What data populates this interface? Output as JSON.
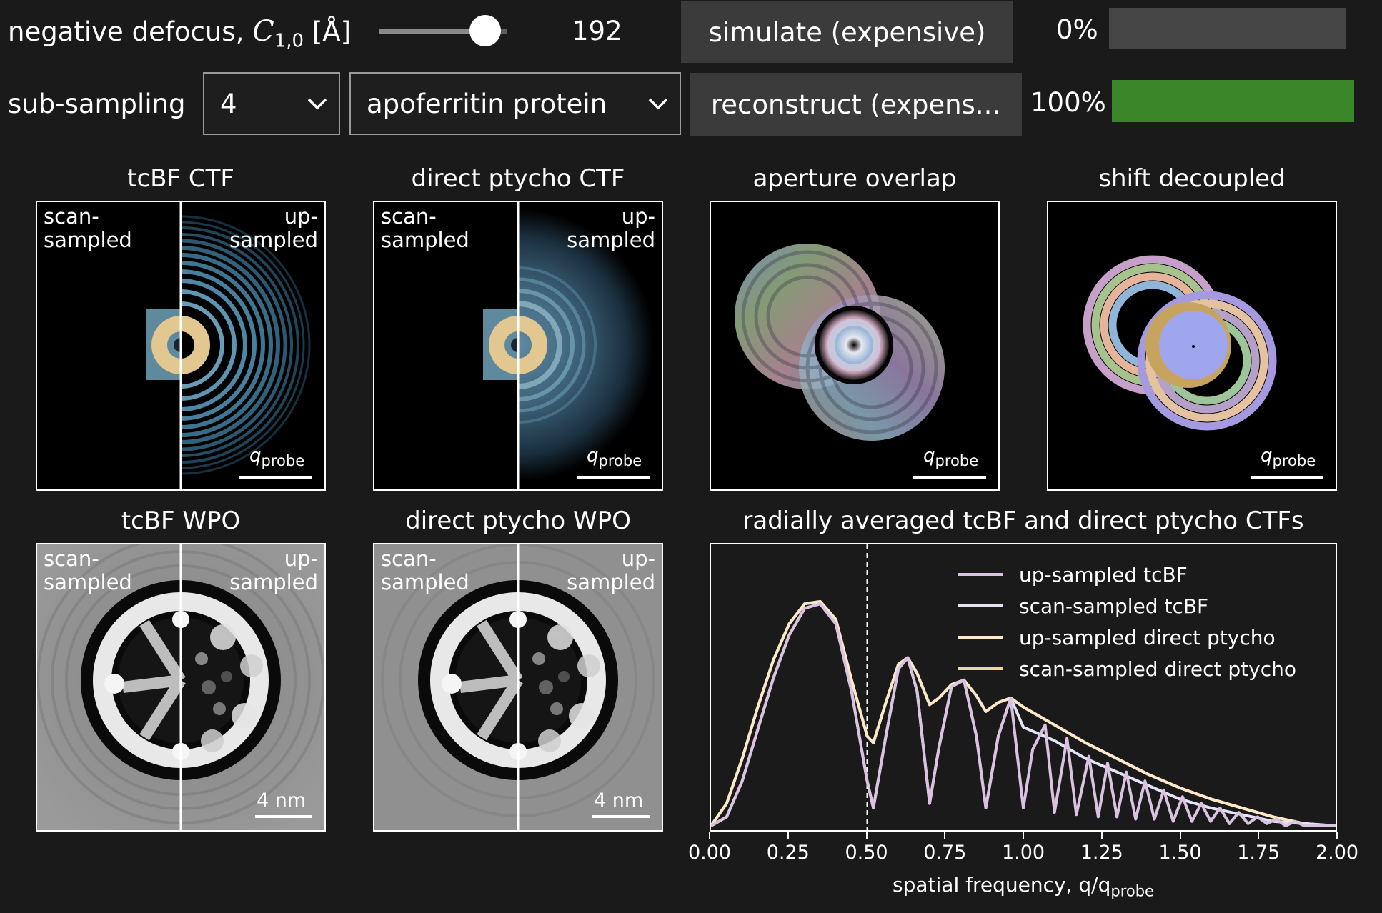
{
  "controls": {
    "defocus_label": "negative defocus, ",
    "defocus_symbol": "C",
    "defocus_sub": "1,0",
    "defocus_unit": " [Å]",
    "defocus_value": "192",
    "slider_fraction": 0.83,
    "simulate_label": "simulate (expensive)",
    "simulate_progress_label": "0%",
    "simulate_progress": 0,
    "subsampling_label": "sub-sampling",
    "subsampling_value": "4",
    "sample_value": "apoferritin protein",
    "reconstruct_label": "reconstruct (expens...",
    "reconstruct_progress_label": "100%",
    "reconstruct_progress": 1.0,
    "progress_color": "#3a8628"
  },
  "panels": {
    "tcbf_ctf": {
      "title": "tcBF CTF",
      "left": "scan-\nsampled",
      "right": "up-\nsampled",
      "scale": "q",
      "scale_sub": "probe"
    },
    "ptycho_ctf": {
      "title": "direct ptycho CTF",
      "left": "scan-\nsampled",
      "right": "up-\nsampled",
      "scale": "q",
      "scale_sub": "probe"
    },
    "aperture": {
      "title": "aperture overlap",
      "scale": "q",
      "scale_sub": "probe"
    },
    "shift": {
      "title": "shift decoupled",
      "scale": "q",
      "scale_sub": "probe"
    },
    "tcbf_wpo": {
      "title": "tcBF WPO",
      "left": "scan-\nsampled",
      "right": "up-\nsampled",
      "scale": "4 nm"
    },
    "ptycho_wpo": {
      "title": "direct ptycho WPO",
      "left": "scan-\nsampled",
      "right": "up-\nsampled",
      "scale": "4 nm"
    }
  },
  "chart_data": {
    "type": "line",
    "title": "radially averaged tcBF and direct ptycho CTFs",
    "xlabel": "spatial frequency, q/q",
    "xlabel_sub": "probe",
    "xlim": [
      0,
      2
    ],
    "ylim": [
      0,
      1
    ],
    "xticks": [
      "0.00",
      "0.25",
      "0.50",
      "0.75",
      "1.00",
      "1.25",
      "1.50",
      "1.75",
      "2.00"
    ],
    "vline_x": 0.5,
    "legend_position": "top-right",
    "series": [
      {
        "name": "up-sampled tcBF",
        "color": "#d9c3e0",
        "x": [
          0,
          0.05,
          0.1,
          0.15,
          0.2,
          0.25,
          0.3,
          0.35,
          0.4,
          0.45,
          0.5,
          0.52,
          0.56,
          0.6,
          0.63,
          0.66,
          0.7,
          0.73,
          0.77,
          0.81,
          0.85,
          0.88,
          0.92,
          0.96,
          1.0,
          1.03,
          1.07,
          1.1,
          1.14,
          1.17,
          1.21,
          1.24,
          1.27,
          1.3,
          1.33,
          1.36,
          1.39,
          1.42,
          1.45,
          1.48,
          1.51,
          1.54,
          1.57,
          1.6,
          1.63,
          1.66,
          1.69,
          1.72,
          1.75,
          1.78,
          1.81,
          1.84,
          1.87,
          1.9,
          1.95,
          2.0
        ],
        "y": [
          0,
          0.04,
          0.2,
          0.43,
          0.66,
          0.85,
          0.97,
          0.99,
          0.9,
          0.6,
          0.2,
          0.08,
          0.4,
          0.7,
          0.75,
          0.6,
          0.1,
          0.35,
          0.62,
          0.65,
          0.4,
          0.08,
          0.4,
          0.57,
          0.08,
          0.34,
          0.45,
          0.06,
          0.39,
          0.05,
          0.31,
          0.04,
          0.28,
          0.04,
          0.24,
          0.03,
          0.2,
          0.03,
          0.16,
          0.02,
          0.13,
          0.02,
          0.1,
          0.02,
          0.08,
          0.01,
          0.06,
          0.01,
          0.04,
          0.01,
          0.03,
          0,
          0.02,
          0,
          0,
          0
        ]
      },
      {
        "name": "scan-sampled tcBF",
        "color": "#e3e3f5",
        "x": [
          0,
          0.05,
          0.1,
          0.15,
          0.2,
          0.25,
          0.3,
          0.35,
          0.4,
          0.45,
          0.5,
          0.52,
          0.56,
          0.6,
          0.63,
          0.66,
          0.7,
          0.73,
          0.77,
          0.81,
          0.85,
          0.88,
          0.92,
          0.96,
          1.0,
          1.1,
          1.2,
          1.3,
          1.4,
          1.5,
          1.6,
          1.7,
          1.8,
          1.9,
          2.0
        ],
        "y": [
          0,
          0.04,
          0.2,
          0.43,
          0.66,
          0.85,
          0.97,
          0.99,
          0.9,
          0.6,
          0.2,
          0.08,
          0.4,
          0.7,
          0.75,
          0.6,
          0.1,
          0.35,
          0.62,
          0.65,
          0.4,
          0.08,
          0.4,
          0.57,
          0.44,
          0.38,
          0.3,
          0.24,
          0.18,
          0.12,
          0.08,
          0.05,
          0.02,
          0.01,
          0
        ]
      },
      {
        "name": "up-sampled direct ptycho",
        "color": "#fbe8c8",
        "x": [
          0,
          0.05,
          0.1,
          0.15,
          0.2,
          0.25,
          0.3,
          0.35,
          0.4,
          0.45,
          0.5,
          0.52,
          0.56,
          0.6,
          0.63,
          0.66,
          0.7,
          0.73,
          0.77,
          0.81,
          0.85,
          0.88,
          0.92,
          0.96,
          1.0,
          1.1,
          1.2,
          1.3,
          1.4,
          1.5,
          1.6,
          1.7,
          1.8,
          1.9,
          2.0
        ],
        "y": [
          0,
          0.1,
          0.3,
          0.53,
          0.74,
          0.9,
          0.99,
          1.0,
          0.92,
          0.65,
          0.4,
          0.37,
          0.55,
          0.72,
          0.75,
          0.68,
          0.54,
          0.57,
          0.63,
          0.65,
          0.58,
          0.51,
          0.55,
          0.57,
          0.53,
          0.45,
          0.37,
          0.3,
          0.23,
          0.17,
          0.12,
          0.08,
          0.04,
          0.01,
          0
        ]
      },
      {
        "name": "scan-sampled direct ptycho",
        "color": "#f3d2a6",
        "x": [
          0,
          0.05,
          0.1,
          0.15,
          0.2,
          0.25,
          0.3,
          0.35,
          0.4,
          0.45,
          0.5,
          0.52,
          0.56,
          0.6,
          0.63,
          0.66,
          0.7,
          0.73,
          0.77,
          0.81,
          0.85,
          0.88,
          0.92,
          0.96,
          1.0,
          1.1,
          1.2,
          1.3,
          1.4,
          1.5,
          1.6,
          1.7,
          1.8,
          1.9,
          2.0
        ],
        "y": [
          0,
          0.1,
          0.3,
          0.53,
          0.74,
          0.9,
          0.99,
          1.0,
          0.92,
          0.65,
          0.4,
          0.37,
          0.55,
          0.72,
          0.75,
          0.68,
          0.54,
          0.57,
          0.63,
          0.65,
          0.58,
          0.51,
          0.55,
          0.57,
          0.53,
          0.45,
          0.37,
          0.3,
          0.23,
          0.17,
          0.12,
          0.08,
          0.04,
          0.01,
          0
        ]
      }
    ]
  }
}
